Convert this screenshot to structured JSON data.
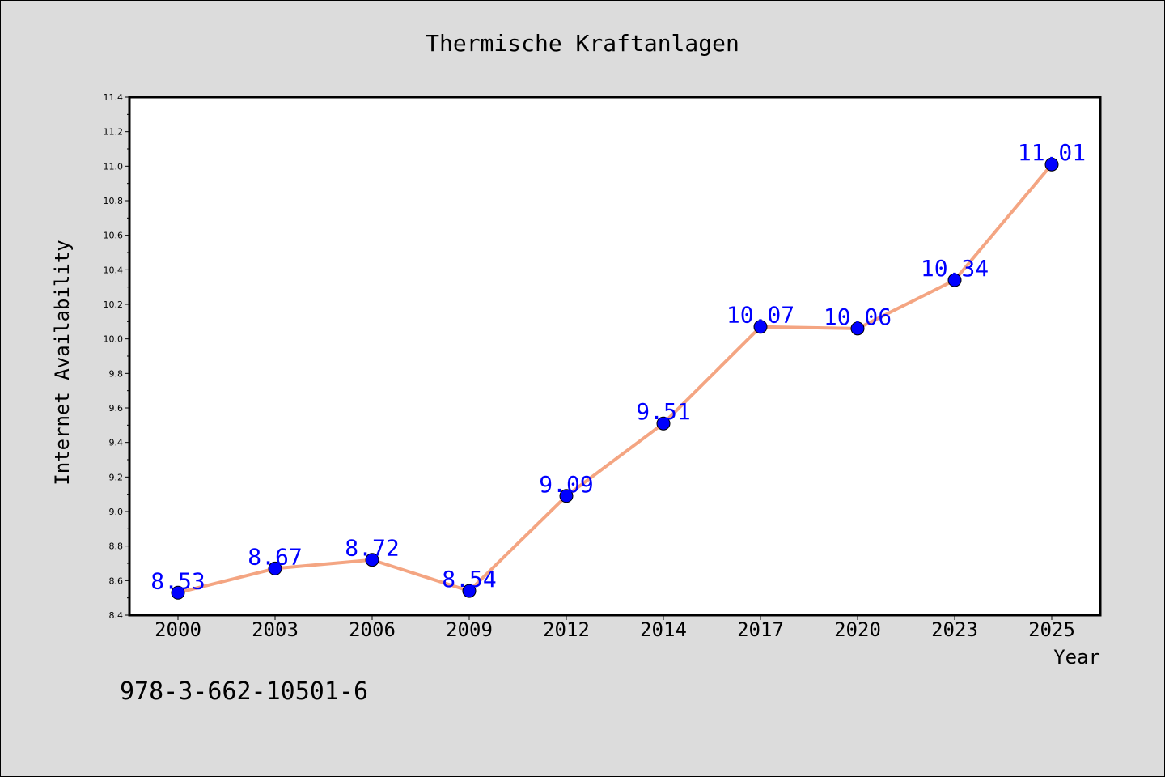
{
  "chart_data": {
    "type": "line",
    "title": "Thermische Kraftanlagen",
    "xlabel": "Year",
    "ylabel": "Internet Availability",
    "categories": [
      "2000",
      "2003",
      "2006",
      "2009",
      "2012",
      "2014",
      "2017",
      "2020",
      "2023",
      "2025"
    ],
    "series": [
      {
        "values": [
          8.53,
          8.67,
          8.72,
          8.54,
          9.09,
          9.51,
          10.07,
          10.06,
          10.34,
          11.01
        ]
      }
    ],
    "data_labels": [
      "8.53",
      "8.67",
      "8.72",
      "8.54",
      "9.09",
      "9.51",
      "10.07",
      "10.06",
      "10.34",
      "11.01"
    ],
    "ylim": [
      8.4,
      11.4
    ],
    "yticks": [
      "8.4",
      "8.6",
      "8.8",
      "9.0",
      "9.2",
      "9.4",
      "9.6",
      "9.8",
      "10.0",
      "10.2",
      "10.4",
      "10.6",
      "10.8",
      "11.0",
      "11.2",
      "11.4"
    ],
    "grid": false,
    "legend": "none",
    "colors": {
      "line": "#f4a582",
      "marker": "#0000ff",
      "label": "#0000ff",
      "background": "#dcdcdc",
      "plot_background": "#ffffff"
    }
  },
  "footer": {
    "isbn": "978-3-662-10501-6"
  }
}
